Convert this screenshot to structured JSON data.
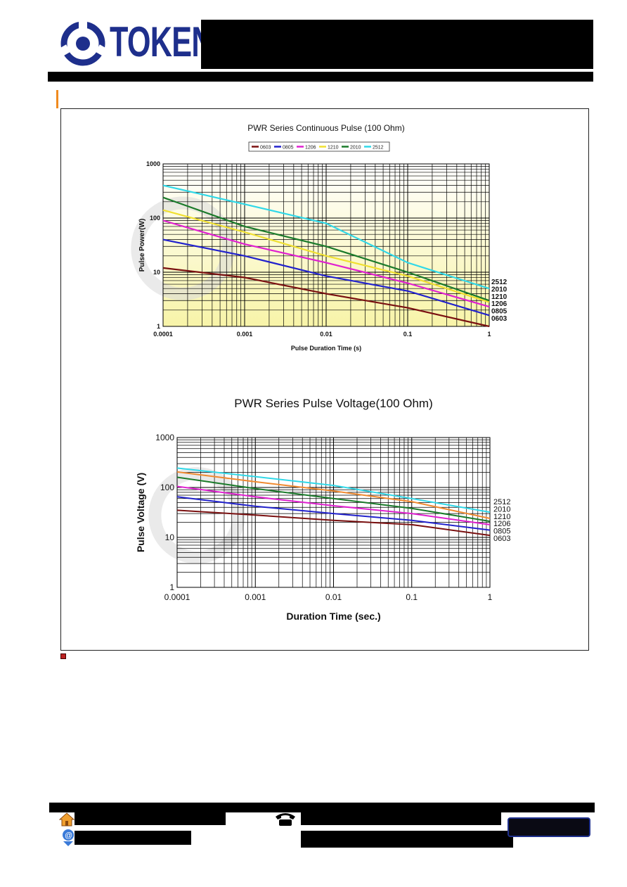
{
  "header": {
    "brand": "TOKEN"
  },
  "colors": {
    "brand": "#1e2f8c",
    "accent": "#f08a1e",
    "plot_bg_top": "#ffffff",
    "plot_bg_bottom": "#f8f4a8"
  },
  "icons": [
    "logo-icon",
    "home-icon",
    "telephone-icon",
    "email-icon"
  ],
  "chart_data": [
    {
      "type": "line",
      "title": "PWR Series Continuous Pulse (100 Ohm)",
      "xlabel": "Pulse Duration Time (s)",
      "ylabel": "Pulse Power(W)",
      "x_scale": "log",
      "y_scale": "log",
      "xlim": [
        0.0001,
        1
      ],
      "ylim": [
        1,
        1000
      ],
      "x_ticks": [
        "0.0001",
        "0.001",
        "0.01",
        "0.1",
        "1"
      ],
      "y_ticks": [
        "1",
        "10",
        "100",
        "1000"
      ],
      "grid": true,
      "legend_position": "top-center",
      "x": [
        0.0001,
        0.001,
        0.01,
        0.1,
        1
      ],
      "series": [
        {
          "name": "0603",
          "color": "#7a1010",
          "values": [
            12,
            8,
            4,
            2.2,
            1.0
          ]
        },
        {
          "name": "0805",
          "color": "#2222cc",
          "values": [
            40,
            20,
            8.5,
            4.5,
            1.6
          ]
        },
        {
          "name": "1206",
          "color": "#e020d0",
          "values": [
            90,
            33,
            15,
            6.3,
            2.3
          ]
        },
        {
          "name": "1210",
          "color": "#f0e030",
          "values": [
            140,
            55,
            20,
            8.5,
            2.8
          ]
        },
        {
          "name": "2010",
          "color": "#1a7a2a",
          "values": [
            240,
            70,
            30,
            10,
            3.0
          ]
        },
        {
          "name": "2512",
          "color": "#30d8e8",
          "values": [
            400,
            180,
            80,
            15,
            5.0
          ]
        }
      ],
      "end_labels": [
        "2512",
        "2010",
        "1210",
        "1206",
        "0805",
        "0603"
      ]
    },
    {
      "type": "line",
      "title": "PWR Series Pulse Voltage(100 Ohm)",
      "xlabel": "Duration Time (sec.)",
      "ylabel": "Pulse Voltage (V)",
      "x_scale": "log",
      "y_scale": "log",
      "xlim": [
        0.0001,
        1
      ],
      "ylim": [
        1,
        1000
      ],
      "x_ticks": [
        "0.0001",
        "0.001",
        "0.01",
        "0.1",
        "1"
      ],
      "y_ticks": [
        "1",
        "10",
        "100",
        "1000"
      ],
      "grid": true,
      "x": [
        0.0001,
        0.001,
        0.01,
        0.1,
        1
      ],
      "series": [
        {
          "color": "#7a1010",
          "values": [
            35,
            28,
            22,
            18,
            11
          ]
        },
        {
          "color": "#2222cc",
          "values": [
            65,
            42,
            30,
            22,
            14
          ]
        },
        {
          "color": "#e020d0",
          "values": [
            105,
            65,
            43,
            30,
            18
          ]
        },
        {
          "color": "#1a7a2a",
          "values": [
            160,
            95,
            60,
            38,
            21
          ]
        },
        {
          "color": "#f08a30",
          "values": [
            205,
            130,
            85,
            52,
            24
          ]
        },
        {
          "color": "#30d8e8",
          "values": [
            245,
            165,
            110,
            60,
            32
          ]
        }
      ],
      "end_labels": [
        "2512",
        "2010",
        "1210",
        "1206",
        "0805",
        "0603"
      ]
    }
  ]
}
